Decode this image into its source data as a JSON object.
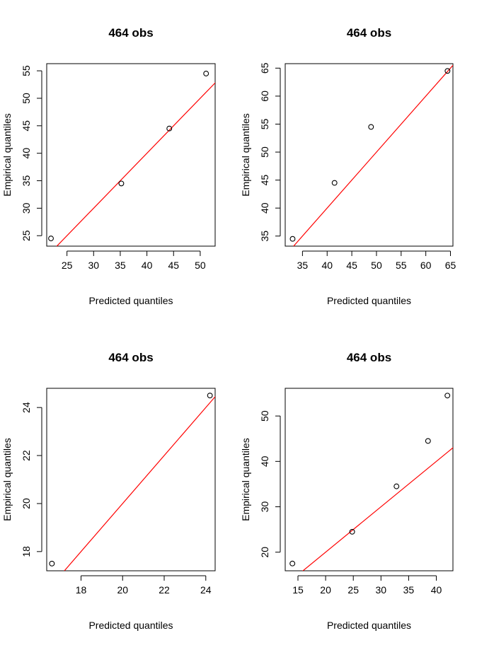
{
  "figure": {
    "panels": [
      {
        "title": "464 obs",
        "xlabel": "Predicted  quantiles",
        "ylabel": "Empirical  quantiles"
      },
      {
        "title": "464 obs",
        "xlabel": "Predicted  quantiles",
        "ylabel": "Empirical  quantiles"
      },
      {
        "title": "464 obs",
        "xlabel": "Predicted  quantiles",
        "ylabel": "Empirical  quantiles"
      },
      {
        "title": "464 obs",
        "xlabel": "Predicted  quantiles",
        "ylabel": "Empirical  quantiles"
      }
    ]
  },
  "chart_data": [
    {
      "type": "scatter",
      "title": "464 obs",
      "xlabel": "Predicted  quantiles",
      "ylabel": "Empirical  quantiles",
      "xlim": [
        21.2,
        52.8
      ],
      "ylim": [
        23.1,
        56.3
      ],
      "xticks": [
        25,
        30,
        35,
        40,
        45,
        50
      ],
      "yticks": [
        25,
        30,
        35,
        40,
        45,
        50,
        55
      ],
      "points": [
        {
          "x": 22.0,
          "y": 24.5
        },
        {
          "x": 35.2,
          "y": 34.5
        },
        {
          "x": 44.2,
          "y": 44.5
        },
        {
          "x": 51.1,
          "y": 54.5
        }
      ],
      "reference_line": {
        "from": {
          "x": 23.0,
          "y": 23.0
        },
        "to": {
          "x": 53.0,
          "y": 53.0
        },
        "color": "#ff0000"
      },
      "point_color": "#000000",
      "grid": false
    },
    {
      "type": "scatter",
      "title": "464 obs",
      "xlabel": "Predicted  quantiles",
      "ylabel": "Empirical  quantiles",
      "xlim": [
        31.5,
        65.5
      ],
      "ylim": [
        33.2,
        65.8
      ],
      "xticks": [
        35,
        40,
        45,
        50,
        55,
        60,
        65
      ],
      "yticks": [
        35,
        40,
        45,
        50,
        55,
        60,
        65
      ],
      "points": [
        {
          "x": 33.0,
          "y": 34.5
        },
        {
          "x": 41.5,
          "y": 44.5
        },
        {
          "x": 48.9,
          "y": 54.5
        },
        {
          "x": 64.4,
          "y": 64.5
        }
      ],
      "reference_line": {
        "from": {
          "x": 33.0,
          "y": 33.0
        },
        "to": {
          "x": 66.0,
          "y": 66.0
        },
        "color": "#ff0000"
      },
      "point_color": "#000000",
      "grid": false
    },
    {
      "type": "scatter",
      "title": "464 obs",
      "xlabel": "Predicted  quantiles",
      "ylabel": "Empirical  quantiles",
      "xlim": [
        16.35,
        24.45
      ],
      "ylim": [
        17.2,
        24.8
      ],
      "xticks": [
        18,
        20,
        22,
        24
      ],
      "yticks": [
        18,
        20,
        22,
        24
      ],
      "points": [
        {
          "x": 16.6,
          "y": 17.5
        },
        {
          "x": 24.2,
          "y": 24.5
        }
      ],
      "reference_line": {
        "from": {
          "x": 17.2,
          "y": 17.2
        },
        "to": {
          "x": 24.8,
          "y": 24.8
        },
        "color": "#ff0000"
      },
      "point_color": "#000000",
      "grid": false
    },
    {
      "type": "scatter",
      "title": "464 obs",
      "xlabel": "Predicted  quantiles",
      "ylabel": "Empirical  quantiles",
      "xlim": [
        12.7,
        43.0
      ],
      "ylim": [
        15.9,
        56.1
      ],
      "xticks": [
        15,
        20,
        25,
        30,
        35,
        40
      ],
      "yticks": [
        20,
        30,
        40,
        50
      ],
      "points": [
        {
          "x": 14.0,
          "y": 17.5
        },
        {
          "x": 24.8,
          "y": 24.5
        },
        {
          "x": 32.8,
          "y": 34.5
        },
        {
          "x": 38.5,
          "y": 44.5
        },
        {
          "x": 42.0,
          "y": 54.5
        }
      ],
      "reference_line": {
        "from": {
          "x": 12.0,
          "y": 12.0
        },
        "to": {
          "x": 44.0,
          "y": 44.0
        },
        "color": "#ff0000"
      },
      "point_color": "#000000",
      "grid": false
    }
  ]
}
